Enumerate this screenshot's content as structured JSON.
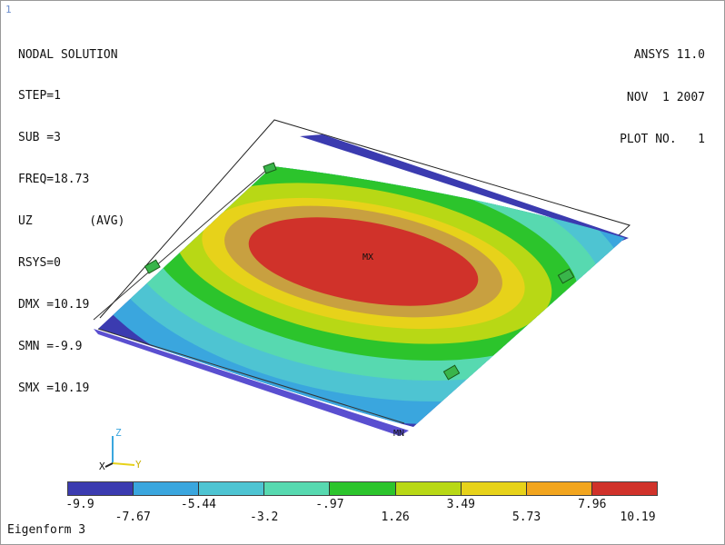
{
  "window_number": "1",
  "solution": {
    "title": "NODAL SOLUTION",
    "step": "STEP=1",
    "sub": "SUB =3",
    "freq": "FREQ=18.73",
    "result": "UZ        (AVG)",
    "rsys": "RSYS=0",
    "dmx": "DMX =10.19",
    "smn": "SMN =-9.9",
    "smx": "SMX =10.19"
  },
  "header": {
    "version": "ANSYS 11.0",
    "date": "NOV  1 2007",
    "plot_no": "PLOT NO.   1"
  },
  "markers": {
    "max": "MX",
    "min": "MN"
  },
  "triad": {
    "x": "X",
    "y": "Y",
    "z": "Z"
  },
  "legend": {
    "colors": [
      "#3b3bb0",
      "#3aa6de",
      "#4ec4d2",
      "#57d9b0",
      "#2cc42c",
      "#b8d815",
      "#e7d21a",
      "#f2a51e",
      "#d0322a"
    ],
    "ticks_top": [
      "-9.9",
      "-5.44",
      "-.97",
      "3.49",
      "7.96"
    ],
    "ticks_bottom": [
      "-7.67",
      "-3.2",
      "1.26",
      "5.73",
      "10.19"
    ]
  },
  "footer": "Eigenform 3"
}
